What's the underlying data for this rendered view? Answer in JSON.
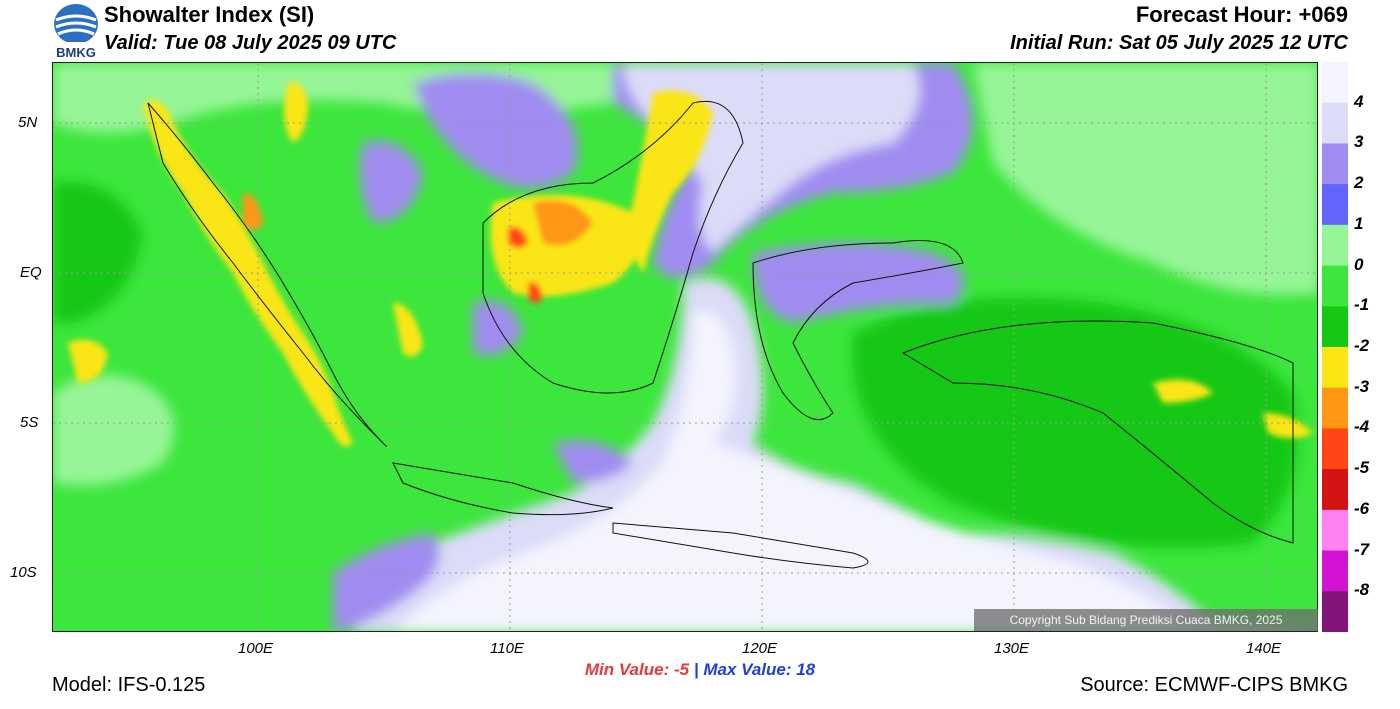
{
  "header": {
    "title": "Showalter Index (SI)",
    "valid": "Valid: Tue 08 July 2025 09 UTC",
    "forecast_hour": "Forecast Hour: +069",
    "initial_run": "Initial Run: Sat 05 July 2025 12 UTC"
  },
  "logo": {
    "text": "BMKG"
  },
  "axes": {
    "lat_labels": [
      "5N",
      "EQ",
      "5S",
      "10S"
    ],
    "lon_labels": [
      "100E",
      "110E",
      "120E",
      "130E",
      "140E"
    ]
  },
  "colorbar": {
    "labels": [
      "4",
      "3",
      "2",
      "1",
      "0",
      "-1",
      "-2",
      "-3",
      "-4",
      "-5",
      "-6",
      "-7",
      "-8"
    ],
    "colors": [
      "#f4f4ff",
      "#dcdcf8",
      "#a08cf0",
      "#6464ff",
      "#96f596",
      "#3ce63c",
      "#14c814",
      "#fae614",
      "#ff9614",
      "#ff4614",
      "#d21414",
      "#ff82f0",
      "#d214d2",
      "#82147a"
    ]
  },
  "stats": {
    "min": "Min Value:  -5",
    "separator": "|",
    "max": "Max Value:  18"
  },
  "footer": {
    "model": "Model: IFS-0.125",
    "source": "Source: ECMWF-CIPS BMKG",
    "copyright": "Copyright Sub Bidang Prediksi Cuaca BMKG, 2025"
  }
}
